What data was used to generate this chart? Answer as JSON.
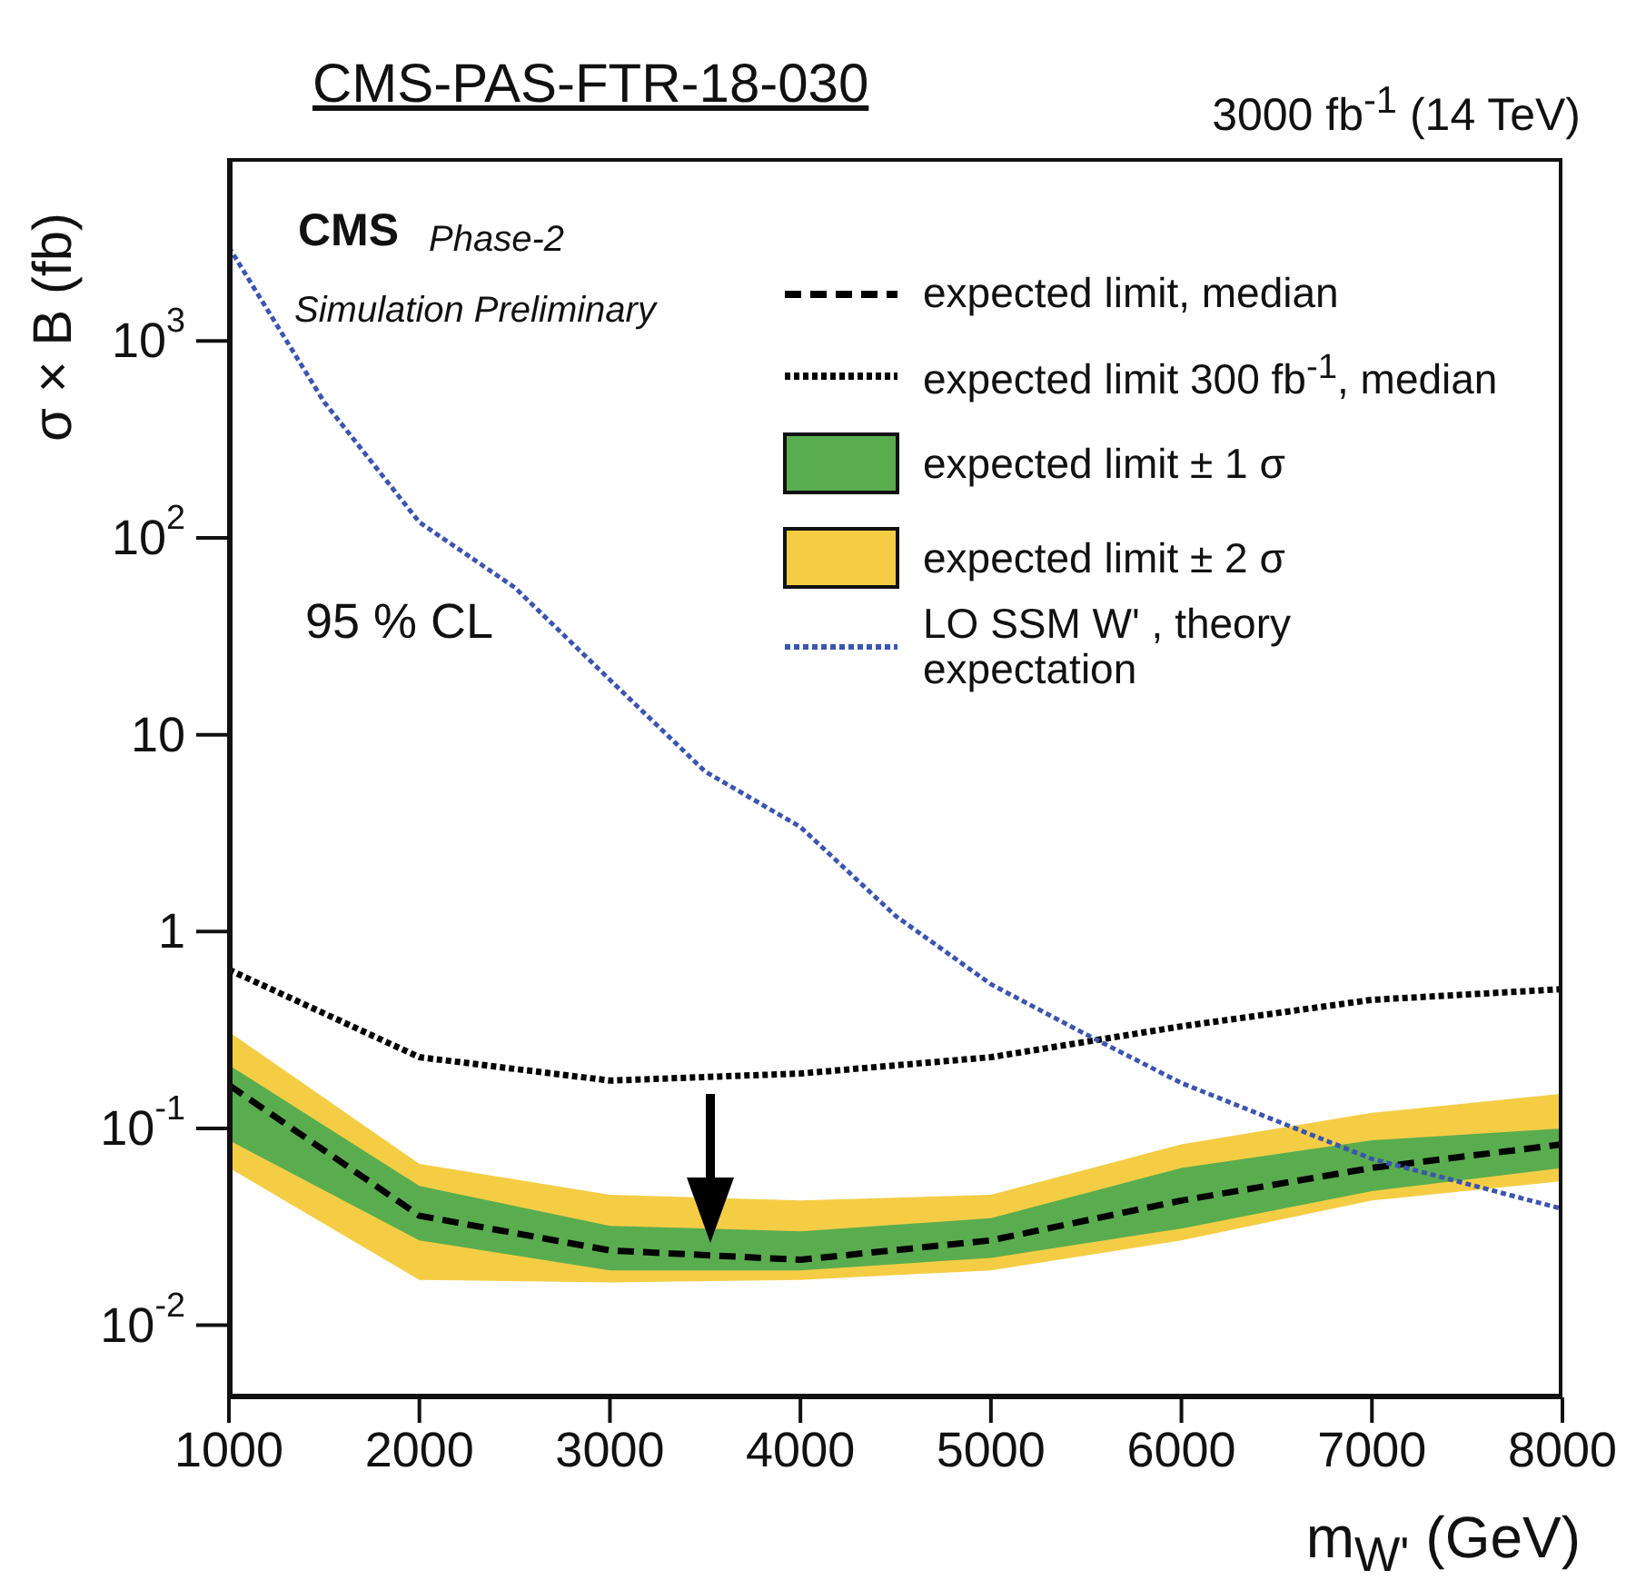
{
  "chart_data": {
    "type": "line",
    "title": "CMS-PAS-FTR-18-030",
    "subtitle": "3000 fb$^{-1}$ (14 TeV)",
    "xlabel": "m$_{W'}$ (GeV)",
    "ylabel": "σ × B (fb)",
    "annotations": [
      "CMS",
      "Phase-2",
      "Simulation Preliminary",
      "95 % CL"
    ],
    "x": [
      1000,
      2000,
      3000,
      4000,
      5000,
      6000,
      7000,
      8000
    ],
    "series": [
      {
        "name": "expected limit ± 2 σ",
        "type": "area",
        "color": "#f5cd45",
        "values": [
          null,
          null,
          null,
          null,
          null,
          null,
          null,
          null
        ],
        "lower": [
          0.063,
          0.017,
          0.0165,
          0.017,
          0.019,
          0.027,
          0.043,
          0.054
        ],
        "upper": [
          0.31,
          0.066,
          0.046,
          0.043,
          0.046,
          0.083,
          0.12,
          0.15
        ]
      },
      {
        "name": "expected limit ± 1 σ",
        "type": "area",
        "color": "#5aad4f",
        "values": [
          null,
          null,
          null,
          null,
          null,
          null,
          null,
          null
        ],
        "lower": [
          0.087,
          0.027,
          0.019,
          0.019,
          0.022,
          0.031,
          0.048,
          0.063
        ],
        "upper": [
          0.21,
          0.051,
          0.032,
          0.03,
          0.035,
          0.063,
          0.087,
          0.1
        ]
      },
      {
        "name": "expected limit, median",
        "type": "line",
        "color": "#000000",
        "line_style": "dashed",
        "values": [
          0.166,
          0.036,
          0.024,
          0.0215,
          0.027,
          0.043,
          0.063,
          0.083
        ]
      },
      {
        "name": "expected limit 300 fb$^{-1}$, median",
        "type": "line",
        "color": "#000000",
        "line_style": "dotted",
        "values": [
          0.64,
          0.23,
          0.175,
          0.19,
          0.23,
          0.33,
          0.45,
          0.51
        ]
      },
      {
        "name": "LO SSM W' , theory expectation",
        "type": "line",
        "color": "#3b55b0",
        "line_style": "dotted",
        "x": [
          1000,
          1500,
          2000,
          2500,
          3000,
          3500,
          4000,
          4500,
          5000,
          5500,
          6000,
          7000,
          8000
        ],
        "values": [
          3000,
          490,
          120,
          56,
          19,
          6.5,
          3.4,
          1.2,
          0.54,
          0.3,
          0.17,
          0.07,
          0.039
        ]
      }
    ],
    "log": "y",
    "xlim": [
      1000,
      8000
    ],
    "xticks": [
      1000,
      2000,
      3000,
      4000,
      5000,
      6000,
      7000,
      8000
    ],
    "ylim": [
      0.0043,
      8500
    ],
    "yticks": [
      {
        "value": 0.01,
        "label": "10$^{-2}$"
      },
      {
        "value": 0.1,
        "label": "10$^{-1}$"
      },
      1,
      10,
      {
        "value": 100,
        "label": "10$^{2}$"
      },
      {
        "value": 1000,
        "label": "10$^{3}$"
      }
    ],
    "grid": false,
    "legend": "top right",
    "marker": "none"
  }
}
